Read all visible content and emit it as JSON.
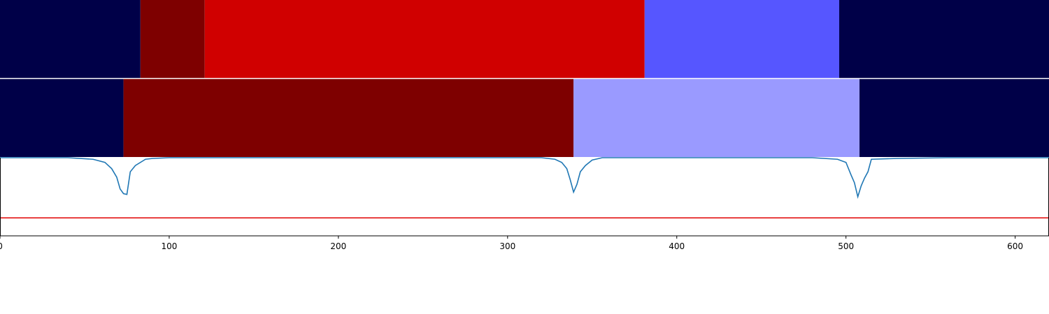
{
  "colors": {
    "navy": "#000048",
    "dark_red": "#7e0000",
    "red": "#d00000",
    "blue": "#5656ff",
    "light_blue": "#9a9aff",
    "curve": "#1f77b4",
    "threshold": "#e00000",
    "frame": "#000000"
  },
  "chart_data": [
    {
      "type": "heatmap",
      "name": "segment-row-1",
      "segments": [
        {
          "start": 0,
          "end": 83,
          "color": "navy"
        },
        {
          "start": 83,
          "end": 121,
          "color": "dark_red"
        },
        {
          "start": 121,
          "end": 381,
          "color": "red"
        },
        {
          "start": 381,
          "end": 496,
          "color": "blue"
        },
        {
          "start": 496,
          "end": 620,
          "color": "navy"
        }
      ]
    },
    {
      "type": "heatmap",
      "name": "segment-row-2",
      "segments": [
        {
          "start": 0,
          "end": 73,
          "color": "navy"
        },
        {
          "start": 73,
          "end": 339,
          "color": "dark_red"
        },
        {
          "start": 339,
          "end": 508,
          "color": "light_blue"
        },
        {
          "start": 508,
          "end": 620,
          "color": "navy"
        }
      ]
    },
    {
      "type": "line",
      "name": "signal-panel",
      "xlim": [
        0,
        620
      ],
      "xticks": [
        0,
        100,
        200,
        300,
        400,
        500,
        600
      ],
      "threshold": 0.77,
      "series": [
        {
          "x": [
            0,
            40,
            55,
            62,
            66,
            69,
            71,
            73,
            75,
            77,
            80,
            86,
            90,
            100,
            300,
            320,
            328,
            332,
            335,
            337,
            339,
            341,
            343,
            346,
            350,
            356,
            370,
            460,
            480,
            495,
            500,
            503,
            505,
            507,
            509,
            511,
            513,
            515,
            530,
            560,
            620
          ],
          "y": [
            0,
            0,
            0.02,
            0.06,
            0.14,
            0.25,
            0.4,
            0.46,
            0.47,
            0.18,
            0.1,
            0.02,
            0.01,
            0,
            0,
            0,
            0.02,
            0.06,
            0.14,
            0.28,
            0.44,
            0.34,
            0.18,
            0.1,
            0.03,
            0,
            0,
            0,
            0,
            0.02,
            0.06,
            0.22,
            0.32,
            0.5,
            0.36,
            0.26,
            0.18,
            0.02,
            0.01,
            0,
            0
          ]
        }
      ]
    }
  ]
}
